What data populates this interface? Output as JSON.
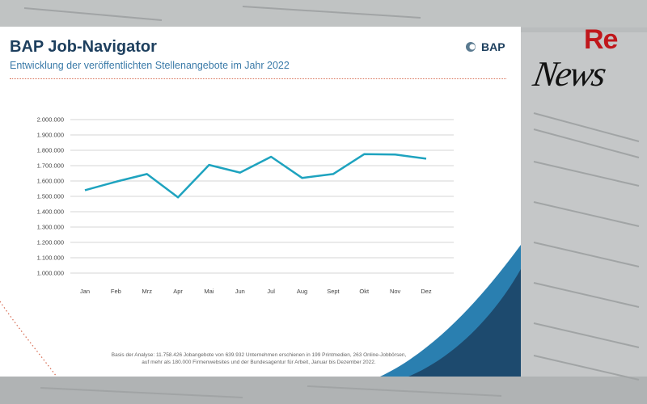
{
  "card": {
    "title": "BAP Job-Navigator",
    "subtitle": "Entwicklung der veröffentlichten Stellenangebote im Jahr 2022",
    "logo_text": "BAP",
    "footnote_line1": "Basis der Analyse: 11.758.426 Jobangebote von 639.932 Unternehmen erschienen in 199 Printmedien, 263 Online-Jobbörsen,",
    "footnote_line2": "auf mehr als 180.000 Firmenwebsites und der Bundesagentur für Arbeit, Januar bis Dezember 2022."
  },
  "watermark": {
    "re": "Re",
    "news": "News"
  },
  "colors": {
    "line": "#1ea3bf",
    "title": "#1d3f5e",
    "subtitle": "#3a7aa8",
    "accent_dots": "#d9735a",
    "swoosh_dark": "#1d4a6e",
    "swoosh_light": "#2a7fb0",
    "grid": "#c8c8c8"
  },
  "chart_data": {
    "type": "line",
    "categories": [
      "Jan",
      "Feb",
      "Mrz",
      "Apr",
      "Mai",
      "Jun",
      "Jul",
      "Aug",
      "Sept",
      "Okt",
      "Nov",
      "Dez"
    ],
    "series": [
      {
        "values": [
          1540000,
          1595000,
          1645000,
          1493000,
          1705000,
          1655000,
          1758000,
          1620000,
          1645000,
          1775000,
          1772000,
          1745000
        ]
      }
    ],
    "yticks": [
      "2.000.000",
      "1.900.000",
      "1.800.000",
      "1.700.000",
      "1.600.000",
      "1.500.000",
      "1.400.000",
      "1.300.000",
      "1.200.000",
      "1.100.000",
      "1.000.000"
    ],
    "ylim": [
      1000000,
      2000000
    ],
    "grid": true,
    "title": "",
    "xlabel": "",
    "ylabel": ""
  }
}
